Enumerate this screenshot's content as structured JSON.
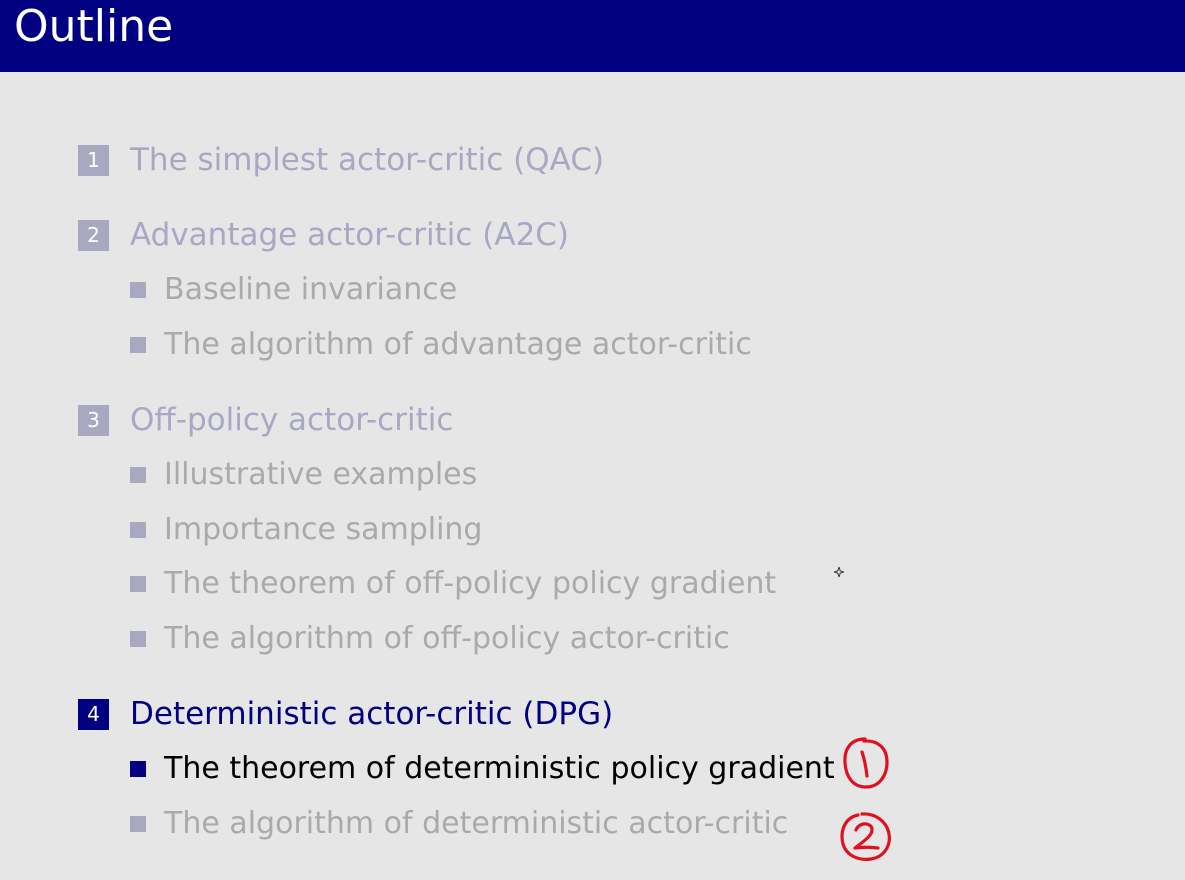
{
  "title": "Outline",
  "colors": {
    "header_bg": "#000080",
    "active": "#000080",
    "inactive_section": "#a8a8c4",
    "inactive_item": "#aaaaaa",
    "annotation": "#e01020"
  },
  "sections": [
    {
      "number": "1",
      "label": "The simplest actor-critic (QAC)",
      "active": false,
      "items": []
    },
    {
      "number": "2",
      "label": "Advantage actor-critic (A2C)",
      "active": false,
      "items": [
        {
          "label": "Baseline invariance",
          "active": false
        },
        {
          "label": "The algorithm of advantage actor-critic",
          "active": false
        }
      ]
    },
    {
      "number": "3",
      "label": "Off-policy actor-critic",
      "active": false,
      "items": [
        {
          "label": "Illustrative examples",
          "active": false
        },
        {
          "label": "Importance sampling",
          "active": false
        },
        {
          "label": "The theorem of off-policy policy gradient",
          "active": false
        },
        {
          "label": "The algorithm of off-policy actor-critic",
          "active": false
        }
      ]
    },
    {
      "number": "4",
      "label": "Deterministic actor-critic (DPG)",
      "active": true,
      "items": [
        {
          "label": "The theorem of deterministic policy gradient",
          "active": true
        },
        {
          "label": "The algorithm of deterministic actor-critic",
          "active": false
        }
      ]
    }
  ],
  "annotations": [
    "1",
    "2"
  ]
}
